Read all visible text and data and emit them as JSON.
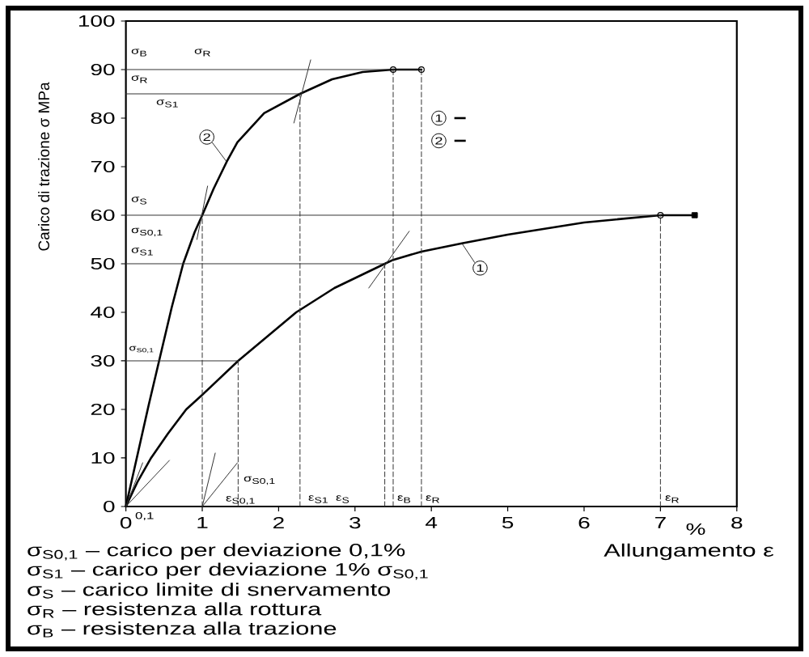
{
  "chart_data": {
    "type": "line",
    "xlabel": "Allungamento ε",
    "ylabel": "Carico di trazione σ MPa",
    "xlim": [
      0,
      8
    ],
    "ylim": [
      0,
      100
    ],
    "xticks": [
      0,
      1,
      2,
      3,
      4,
      5,
      6,
      7,
      8
    ],
    "yticks": [
      0,
      10,
      20,
      30,
      40,
      50,
      60,
      70,
      80,
      90,
      100
    ],
    "legend": "top",
    "series": [
      {
        "name": "1",
        "color": "#000000",
        "x": [
          0,
          0.15,
          0.33,
          0.55,
          0.79,
          1.0,
          1.47,
          2.23,
          2.73,
          3.39,
          3.5,
          3.87,
          4.4,
          5.0,
          6.0,
          7.0,
          7.45
        ],
        "values": [
          0,
          5,
          10,
          15,
          20,
          23,
          30,
          40,
          45,
          50,
          50.8,
          52.5,
          54.2,
          56,
          58.5,
          60,
          60
        ]
      },
      {
        "name": "2",
        "color": "#000000",
        "x": [
          0,
          0.3,
          0.45,
          0.6,
          0.75,
          0.9,
          1.0,
          1.15,
          1.32,
          1.46,
          1.81,
          2.28,
          2.7,
          3.1,
          3.5,
          3.87
        ],
        "values": [
          0,
          21,
          31,
          41,
          50,
          56.5,
          60,
          65.5,
          71,
          75,
          81,
          85,
          88,
          89.5,
          90,
          90
        ]
      },
      {
        "color": "#333333",
        "x": [
          0,
          3.87
        ],
        "values": [
          90,
          90
        ]
      },
      {
        "color": "#333333",
        "x": [
          0,
          2.28
        ],
        "values": [
          85,
          85
        ]
      },
      {
        "color": "#333333",
        "x": [
          0,
          7
        ],
        "values": [
          60,
          60
        ]
      },
      {
        "color": "#333333",
        "x": [
          0,
          3.39
        ],
        "values": [
          50,
          50
        ]
      },
      {
        "color": "#333333",
        "x": [
          0,
          1.47
        ],
        "values": [
          30,
          30
        ]
      },
      {
        "color": "#333333",
        "line_style": "dashed",
        "x": [
          1,
          1
        ],
        "values": [
          0,
          60
        ]
      },
      {
        "color": "#333333",
        "line_style": "dashed",
        "x": [
          1.47,
          1.47
        ],
        "values": [
          0,
          30
        ]
      },
      {
        "color": "#333333",
        "line_style": "dashed",
        "x": [
          2.28,
          2.28
        ],
        "values": [
          0,
          85
        ]
      },
      {
        "color": "#333333",
        "line_style": "dashed",
        "x": [
          3.39,
          3.39
        ],
        "values": [
          0,
          50
        ]
      },
      {
        "color": "#333333",
        "line_style": "dashed",
        "x": [
          3.5,
          3.5
        ],
        "values": [
          0,
          90
        ]
      },
      {
        "color": "#333333",
        "line_style": "dashed",
        "x": [
          3.87,
          3.87
        ],
        "values": [
          0,
          90
        ]
      },
      {
        "color": "#333333",
        "line_style": "dashed",
        "x": [
          7,
          7
        ],
        "values": [
          0,
          60
        ]
      },
      {
        "color": "#333333",
        "x": [
          0,
          0.22
        ],
        "values": [
          0,
          9
        ]
      },
      {
        "color": "#333333",
        "x": [
          0,
          0.57
        ],
        "values": [
          0,
          9.5
        ]
      },
      {
        "color": "#333333",
        "x": [
          1,
          1.17
        ],
        "values": [
          0,
          11
        ]
      },
      {
        "color": "#333333",
        "x": [
          1,
          1.46
        ],
        "values": [
          0,
          9
        ]
      },
      {
        "color": "#333333",
        "x": [
          2.2,
          2.42
        ],
        "values": [
          79,
          92
        ]
      },
      {
        "color": "#333333",
        "x": [
          0.93,
          1.07
        ],
        "values": [
          55,
          66
        ]
      },
      {
        "color": "#333333",
        "x": [
          3.18,
          3.71
        ],
        "values": [
          45,
          56.7
        ]
      },
      {
        "type": "scatter",
        "marker": "circle",
        "color": "#000000",
        "x": [
          3.5,
          3.87,
          7
        ],
        "values": [
          90,
          90,
          60
        ]
      },
      {
        "type": "scatter",
        "marker": "square",
        "color": "#000000",
        "x": [
          7.45
        ],
        "values": [
          60
        ]
      }
    ],
    "annotations": [
      "%",
      "σ$_{S0,1}$ – carico per deviazione 0,1%",
      "σ$_{S1}$ – carico per deviazione 1% σ$_{S0,1}$",
      "σ$_{S}$ – carico limite di snervamento",
      "σ$_{R}$ – resistenza alla rottura",
      "σ$_{B}$ – resistenza alla trazione",
      "0,1",
      "σ$_{B}$",
      "σ$_{R}$",
      "σ$_{R}$",
      "σ$_{S1}$",
      "σ$_{S}$",
      "σ$_{S0,1}$",
      "σ$_{S1}$",
      "σ$_{S0,1}$",
      "σ$_{S0,1}$",
      "ε$_{S0,1}$",
      "ε$_{S1}$",
      "ε$_{S}$",
      "ε$_{B}$",
      "ε$_{R}$",
      "ε$_{R}$"
    ]
  }
}
